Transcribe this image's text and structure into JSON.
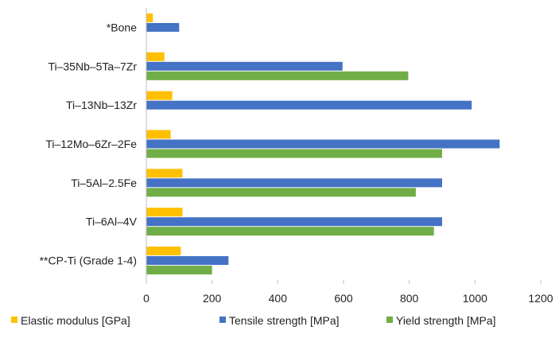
{
  "chart_data": {
    "type": "bar",
    "orientation": "horizontal",
    "categories": [
      "*Bone",
      "Ti–35Nb–5Ta–7Zr",
      "Ti–13Nb–13Zr",
      "Ti–12Mo–6Zr–2Fe",
      "Ti–5Al–2.5Fe",
      "Ti–6Al–4V",
      "**CP-Ti (Grade 1-4)"
    ],
    "series": [
      {
        "name": "Elastic modulus [GPa]",
        "color": "#FFC000",
        "values": [
          20,
          55,
          79,
          74,
          110,
          110,
          105
        ]
      },
      {
        "name": "Tensile strength [MPa]",
        "color": "#4472C4",
        "values": [
          100,
          597,
          990,
          1075,
          900,
          900,
          250
        ]
      },
      {
        "name": "Yield strength [MPa]",
        "color": "#70AD47",
        "values": [
          null,
          797,
          null,
          900,
          820,
          875,
          200
        ]
      }
    ],
    "xlim": [
      0,
      1200
    ],
    "xticks": [
      0,
      200,
      400,
      600,
      800,
      1000,
      1200
    ],
    "title": "",
    "xlabel": "",
    "ylabel": "",
    "grid": false,
    "legend_position": "bottom"
  }
}
